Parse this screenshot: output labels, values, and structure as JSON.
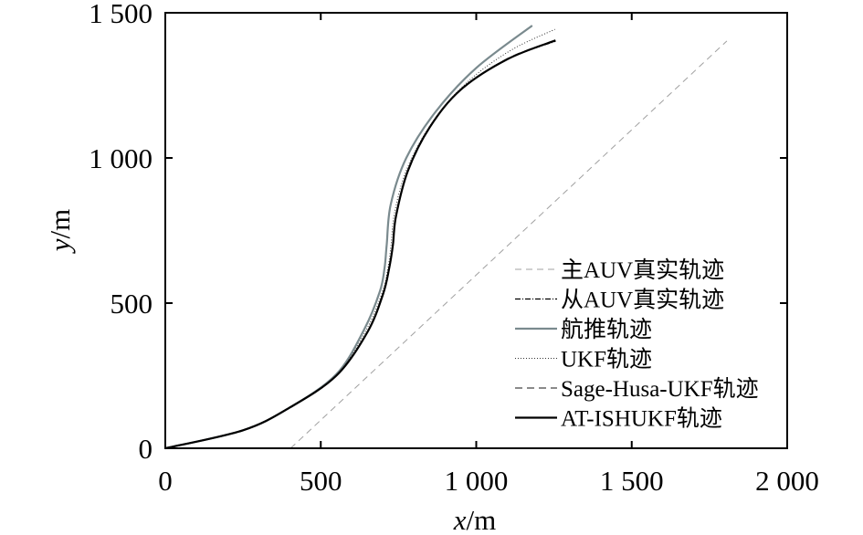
{
  "chart_data": {
    "type": "line",
    "title": "",
    "xlabel_var": "x",
    "xlabel_unit": "/m",
    "ylabel_var": "y",
    "ylabel_unit": "/m",
    "xlim": [
      0,
      2000
    ],
    "ylim": [
      0,
      1500
    ],
    "xticks": [
      0,
      500,
      1000,
      1500,
      2000
    ],
    "xtick_labels": [
      "0",
      "500",
      "1 000",
      "1 500",
      "2 000"
    ],
    "yticks": [
      0,
      500,
      1000,
      1500
    ],
    "ytick_labels": [
      "0",
      "500",
      "1 000",
      "1 500"
    ],
    "grid": false,
    "legend_position": "lower-right",
    "series": [
      {
        "name": "主AUV真实轨迹",
        "color": "#a0a0a0",
        "dash": "7,5",
        "width": 1,
        "x": [
          403,
          1806
        ],
        "y": [
          0,
          1403
        ]
      },
      {
        "name": "从AUV真实轨迹",
        "color": "#000000",
        "dash": "6,2,1,2",
        "width": 1.2,
        "x": [
          0,
          250,
          400,
          550,
          650,
          700,
          720,
          732,
          742,
          780,
          850,
          950,
          1100,
          1255
        ],
        "y": [
          0,
          62,
          140,
          250,
          400,
          530,
          620,
          700,
          800,
          955,
          1105,
          1235,
          1340,
          1402
        ]
      },
      {
        "name": "航推轨迹",
        "color": "#7a8a8e",
        "dash": "",
        "width": 2.2,
        "x": [
          0,
          250,
          400,
          550,
          640,
          690,
          705,
          712,
          725,
          775,
          870,
          1000,
          1180
        ],
        "y": [
          0,
          62,
          140,
          255,
          410,
          540,
          620,
          700,
          840,
          1000,
          1160,
          1310,
          1456
        ]
      },
      {
        "name": "UKF轨迹",
        "color": "#333333",
        "dash": "1,2",
        "width": 1,
        "x": [
          0,
          250,
          400,
          550,
          645,
          697,
          716,
          726,
          737,
          778,
          860,
          970,
          1110,
          1253
        ],
        "y": [
          0,
          62,
          140,
          252,
          405,
          535,
          620,
          700,
          810,
          965,
          1125,
          1260,
          1370,
          1443
        ]
      },
      {
        "name": "Sage-Husa-UKF轨迹",
        "color": "#444444",
        "dash": "8,5",
        "width": 1.2,
        "x": [
          0,
          250,
          400,
          550,
          650,
          700,
          720,
          732,
          742,
          780,
          850,
          950,
          1100,
          1255
        ],
        "y": [
          0,
          62,
          140,
          250,
          400,
          530,
          620,
          700,
          800,
          955,
          1105,
          1235,
          1342,
          1405
        ]
      },
      {
        "name": "AT-ISHUKF轨迹",
        "color": "#000000",
        "dash": "",
        "width": 2.2,
        "x": [
          0,
          250,
          400,
          550,
          650,
          700,
          720,
          732,
          742,
          780,
          850,
          950,
          1100,
          1255
        ],
        "y": [
          0,
          62,
          140,
          250,
          400,
          530,
          620,
          700,
          800,
          955,
          1105,
          1235,
          1340,
          1405
        ]
      }
    ]
  }
}
